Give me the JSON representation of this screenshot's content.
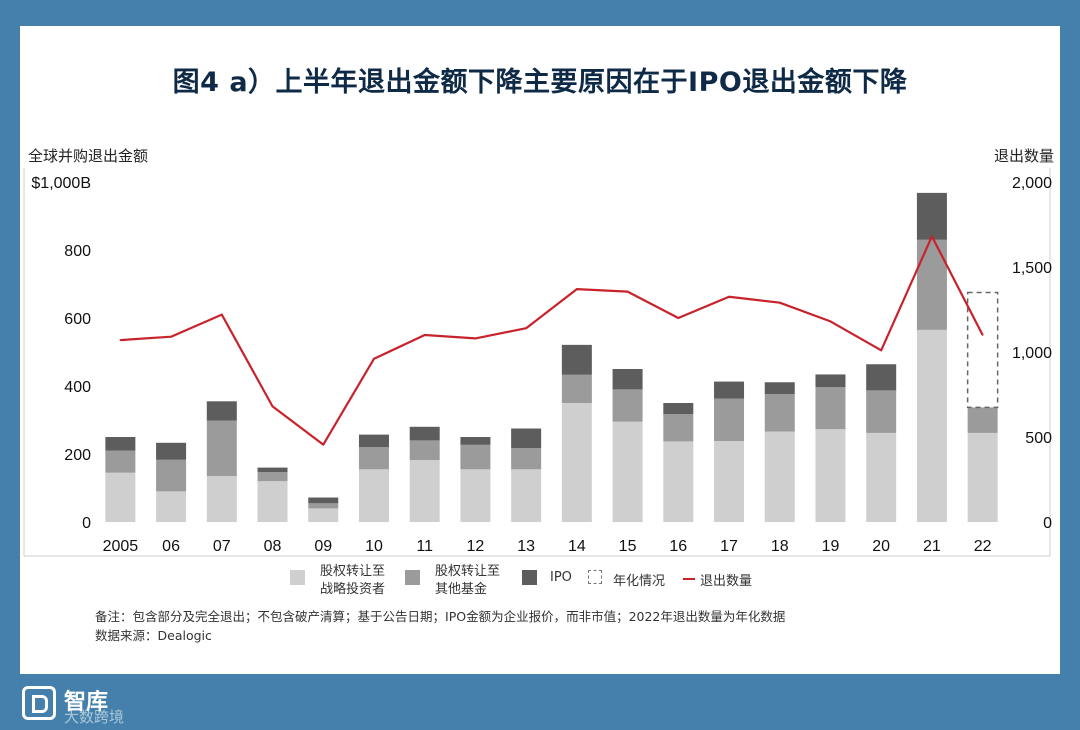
{
  "title": "图4 a）上半年退出金额下降主要原因在于IPO退出金额下降",
  "left_axis_caption": "全球并购退出金额",
  "right_axis_caption": "退出数量",
  "chart_data": {
    "type": "bar",
    "stacked": true,
    "categories": [
      "2005",
      "06",
      "07",
      "08",
      "09",
      "10",
      "11",
      "12",
      "13",
      "14",
      "15",
      "16",
      "17",
      "18",
      "19",
      "20",
      "21",
      "22"
    ],
    "series": [
      {
        "name": "股权转让至战略投资者",
        "color": "#cfcfcf",
        "values": [
          145,
          90,
          135,
          120,
          40,
          155,
          182,
          155,
          155,
          350,
          295,
          237,
          238,
          266,
          273,
          262,
          565,
          262
        ]
      },
      {
        "name": "股权转让至其他基金",
        "color": "#9b9b9b",
        "values": [
          65,
          93,
          163,
          27,
          15,
          65,
          58,
          72,
          62,
          83,
          95,
          80,
          125,
          110,
          124,
          125,
          265,
          75
        ]
      },
      {
        "name": "IPO",
        "color": "#5d5d5d",
        "values": [
          40,
          50,
          57,
          13,
          17,
          37,
          40,
          23,
          58,
          88,
          60,
          33,
          50,
          35,
          37,
          77,
          138,
          0
        ]
      }
    ],
    "annualized": {
      "name": "年化情况",
      "category": "22",
      "from": 337,
      "to": 675
    },
    "line": {
      "name": "退出数量",
      "color": "#c8232c",
      "axis": "right",
      "values": [
        1070,
        1090,
        1220,
        680,
        455,
        960,
        1100,
        1080,
        1140,
        1370,
        1355,
        1200,
        1325,
        1290,
        1180,
        1010,
        1680,
        1100
      ]
    },
    "left_axis": {
      "ticks": [
        0,
        200,
        400,
        600,
        800,
        1000
      ],
      "labels": [
        "0",
        "200",
        "400",
        "600",
        "800",
        "$1,000B"
      ],
      "ylim": [
        0,
        1000
      ]
    },
    "right_axis": {
      "ticks": [
        0,
        500,
        1000,
        1500,
        2000
      ],
      "labels": [
        "0",
        "500",
        "1,000",
        "1,500",
        "2,000"
      ],
      "ylim": [
        0,
        2000
      ]
    }
  },
  "legend": {
    "strategic_l1": "股权转让至",
    "strategic_l2": "战略投资者",
    "fund_l1": "股权转让至",
    "fund_l2": "其他基金",
    "ipo": "IPO",
    "annualized": "年化情况",
    "count": "退出数量"
  },
  "note_line1": "备注：包含部分及完全退出；不包含破产清算；基于公告日期；IPO金额为企业报价，而非市值；2022年退出数量为年化数据",
  "note_line2": "数据来源：Dealogic",
  "logo": {
    "name": "智库",
    "sub": "大数跨境"
  }
}
